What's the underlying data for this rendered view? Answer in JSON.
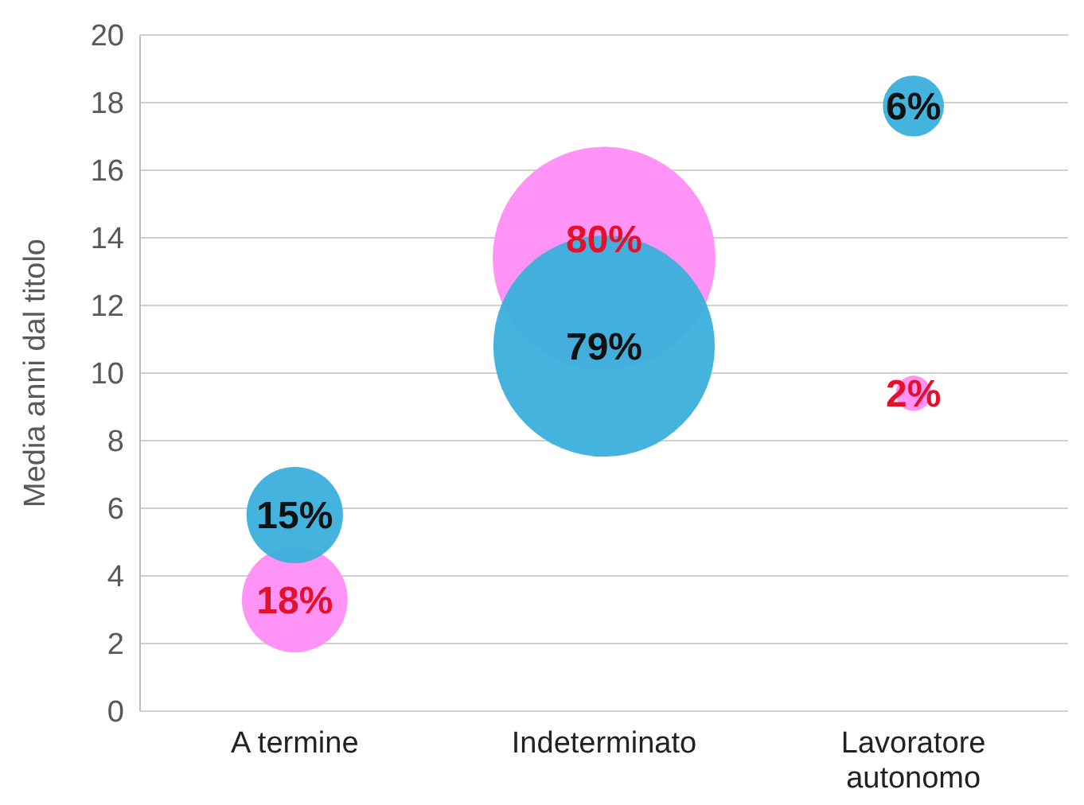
{
  "chart_data": {
    "type": "bubble",
    "ylabel": "Media anni dal titolo",
    "categories": [
      "A termine",
      "Indeterminato",
      "Lavoratore autonomo"
    ],
    "ylim": [
      0,
      20
    ],
    "yticks": [
      0,
      2,
      4,
      6,
      8,
      10,
      12,
      14,
      16,
      18,
      20
    ],
    "grid": "y",
    "series": [
      {
        "color": "#ff8ef6",
        "values": [
          3.3,
          13.4,
          9.4
        ],
        "sizes": [
          0.225,
          1,
          0.025
        ]
      },
      {
        "color": "#3aafdb",
        "values": [
          5.8,
          10.8,
          17.9
        ],
        "sizes": [
          0.1875,
          0.9875,
          0.075
        ]
      }
    ],
    "annotations": [
      {
        "text": "18%",
        "x": "A termine",
        "y": 3.3
      },
      {
        "text": "80%",
        "x": "Indeterminato",
        "y": 13.4
      },
      {
        "text": "2%",
        "x": "Lavoratore autonomo",
        "y": 9.4
      },
      {
        "text": "15%",
        "x": "A termine",
        "y": 5.8
      },
      {
        "text": "79%",
        "x": "Indeterminato",
        "y": 10.8
      },
      {
        "text": "6%",
        "x": "Lavoratore autonomo",
        "y": 17.9
      }
    ]
  }
}
